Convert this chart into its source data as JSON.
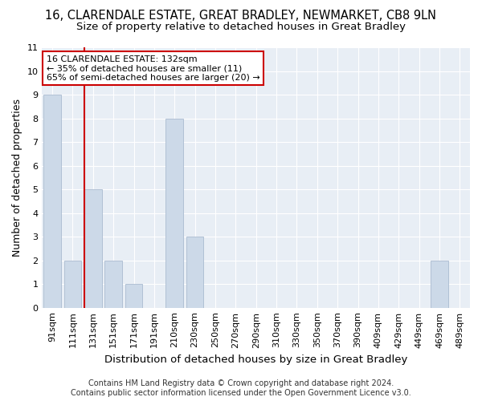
{
  "title": "16, CLARENDALE ESTATE, GREAT BRADLEY, NEWMARKET, CB8 9LN",
  "subtitle": "Size of property relative to detached houses in Great Bradley",
  "xlabel": "Distribution of detached houses by size in Great Bradley",
  "ylabel": "Number of detached properties",
  "categories": [
    "91sqm",
    "111sqm",
    "131sqm",
    "151sqm",
    "171sqm",
    "191sqm",
    "210sqm",
    "230sqm",
    "250sqm",
    "270sqm",
    "290sqm",
    "310sqm",
    "330sqm",
    "350sqm",
    "370sqm",
    "390sqm",
    "409sqm",
    "429sqm",
    "449sqm",
    "469sqm",
    "489sqm"
  ],
  "values": [
    9,
    2,
    5,
    2,
    1,
    0,
    8,
    3,
    0,
    0,
    0,
    0,
    0,
    0,
    0,
    0,
    0,
    0,
    0,
    2,
    0
  ],
  "bar_color": "#ccd9e8",
  "bar_edgecolor": "#aabbd0",
  "highlight_bar_index": 2,
  "highlight_color": "#cc0000",
  "annotation_line1": "16 CLARENDALE ESTATE: 132sqm",
  "annotation_line2": "← 35% of detached houses are smaller (11)",
  "annotation_line3": "65% of semi-detached houses are larger (20) →",
  "annotation_box_color": "#cc0000",
  "ylim": [
    0,
    11
  ],
  "yticks": [
    0,
    1,
    2,
    3,
    4,
    5,
    6,
    7,
    8,
    9,
    10,
    11
  ],
  "plot_bg_color": "#e8eef5",
  "grid_color": "#ffffff",
  "footer_line1": "Contains HM Land Registry data © Crown copyright and database right 2024.",
  "footer_line2": "Contains public sector information licensed under the Open Government Licence v3.0.",
  "title_fontsize": 10.5,
  "subtitle_fontsize": 9.5,
  "axis_label_fontsize": 9,
  "tick_fontsize": 8,
  "annotation_fontsize": 8,
  "footer_fontsize": 7,
  "fig_bg_color": "#ffffff"
}
